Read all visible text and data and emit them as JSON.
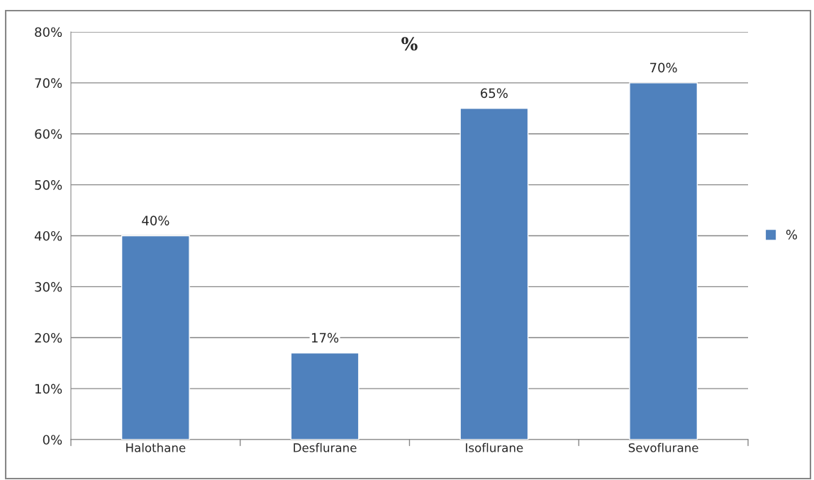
{
  "chart_data": {
    "type": "bar",
    "title": "%",
    "categories": [
      "Halothane",
      "Desflurane",
      "Isoflurane",
      "Sevoflurane"
    ],
    "series": [
      {
        "name": "%",
        "color": "#4f81bd",
        "values": [
          40,
          17,
          65,
          70
        ],
        "value_labels": [
          "40%",
          "17%",
          "65%",
          "70%"
        ]
      }
    ],
    "ylim": [
      0,
      80
    ],
    "yticks": [
      {
        "value": 0,
        "label": "0%"
      },
      {
        "value": 10,
        "label": "10%"
      },
      {
        "value": 20,
        "label": "20%"
      },
      {
        "value": 30,
        "label": "30%"
      },
      {
        "value": 40,
        "label": "40%"
      },
      {
        "value": 50,
        "label": "50%"
      },
      {
        "value": 60,
        "label": "60%"
      },
      {
        "value": 70,
        "label": "70%"
      },
      {
        "value": 80,
        "label": "80%"
      }
    ],
    "grid": "y",
    "legend": "right"
  }
}
